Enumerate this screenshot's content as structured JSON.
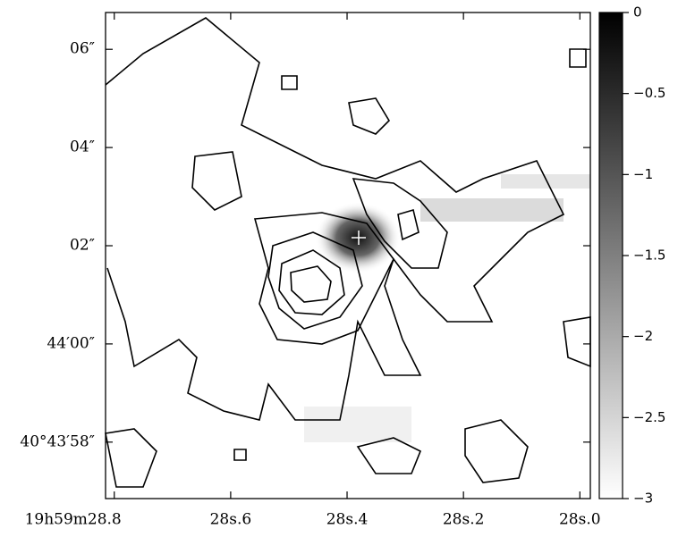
{
  "chart_data": {
    "type": "contour",
    "xlim": [
      28.815,
      27.982
    ],
    "xticks": [
      {
        "value": 28.8,
        "label": "19h59m28.8"
      },
      {
        "value": 28.6,
        "label": "28s.6"
      },
      {
        "value": 28.4,
        "label": "28s.4"
      },
      {
        "value": 28.2,
        "label": "28s.2"
      },
      {
        "value": 28.0,
        "label": "28s.0"
      }
    ],
    "ylim": [
      -3.15,
      6.75
    ],
    "yticks": [
      {
        "value": 6,
        "label": "06″"
      },
      {
        "value": 4,
        "label": "04″"
      },
      {
        "value": 2,
        "label": "02″"
      },
      {
        "value": 0,
        "label": "44′00″"
      },
      {
        "value": -2,
        "label": "40°43′58″"
      }
    ],
    "colorbar": {
      "lim": [
        -3,
        0
      ],
      "ticks": [
        0,
        {
          "value": -0.5,
          "label": "−0.5"
        },
        {
          "value": -1,
          "label": "−1"
        },
        {
          "value": -1.5,
          "label": "−1.5"
        },
        {
          "value": -2,
          "label": "−2"
        },
        {
          "value": -2.5,
          "label": "−2.5"
        },
        {
          "value": -3,
          "label": "−3"
        }
      ]
    }
  }
}
